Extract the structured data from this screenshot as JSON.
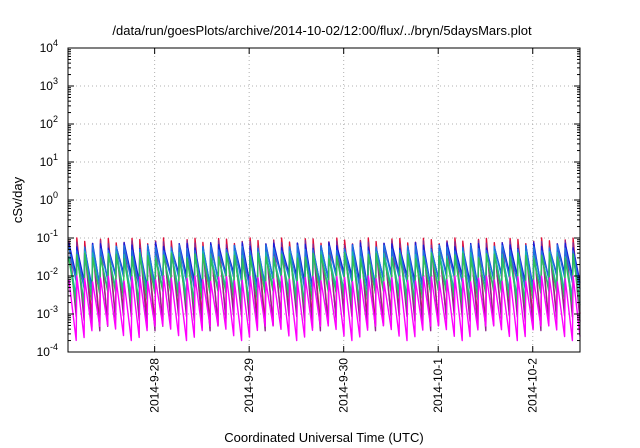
{
  "chart_data": {
    "type": "line",
    "title": "/data/run/goesPlots/archive/2014-10-02/12:00/flux/../bryn/5daysMars.plot",
    "xlabel": "Coordinated Universal Time (UTC)",
    "ylabel": "cSv/day",
    "y_scale": "log",
    "ylim": [
      0.0001,
      10000
    ],
    "y_ticks": [
      {
        "value": 0.0001,
        "base": "10",
        "exp": "-4"
      },
      {
        "value": 0.001,
        "base": "10",
        "exp": "-3"
      },
      {
        "value": 0.01,
        "base": "10",
        "exp": "-2"
      },
      {
        "value": 0.1,
        "base": "10",
        "exp": "-1"
      },
      {
        "value": 1,
        "base": "10",
        "exp": "0"
      },
      {
        "value": 10,
        "base": "10",
        "exp": "1"
      },
      {
        "value": 100,
        "base": "10",
        "exp": "2"
      },
      {
        "value": 1000,
        "base": "10",
        "exp": "3"
      },
      {
        "value": 10000,
        "base": "10",
        "exp": "4"
      }
    ],
    "x_range_days": [
      "2014-09-27T02:00",
      "2014-10-02T12:00"
    ],
    "x_ticks": [
      {
        "value": "2014-09-28",
        "label": "2014-9-28"
      },
      {
        "value": "2014-09-29",
        "label": "2014-9-29"
      },
      {
        "value": "2014-09-30",
        "label": "2014-9-30"
      },
      {
        "value": "2014-10-01",
        "label": "2014-10-1"
      },
      {
        "value": "2014-10-02",
        "label": "2014-10-2"
      }
    ],
    "grid": true,
    "pattern": "sawtooth, period about 2 h, each cycle jumps to its peak and decays",
    "series": [
      {
        "color": "#e0103a",
        "peak": 0.1,
        "trough": 0.0012
      },
      {
        "color": "#8d2a8d",
        "peak": 0.085,
        "trough": 0.0009
      },
      {
        "color": "#1a1ad8",
        "peak": 0.075,
        "trough": 0.012
      },
      {
        "color": "#1e73e0",
        "peak": 0.065,
        "trough": 0.01
      },
      {
        "color": "#19b4b4",
        "peak": 0.045,
        "trough": 0.005
      },
      {
        "color": "#2fbf5a",
        "peak": 0.04,
        "trough": 0.004
      },
      {
        "color": "#ff00ff",
        "peak": 0.01,
        "trough": 0.0005
      }
    ]
  }
}
